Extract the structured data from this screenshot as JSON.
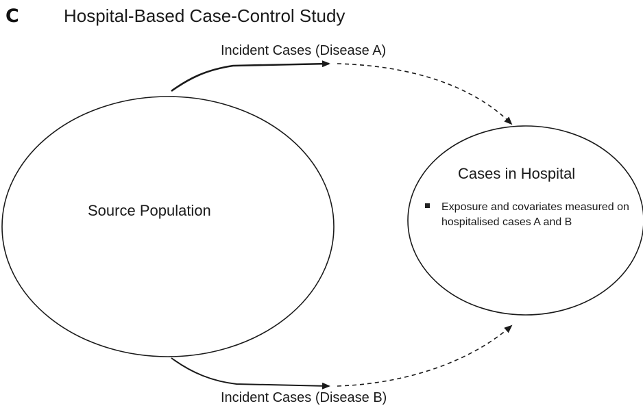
{
  "panel": {
    "letter": "C",
    "title": "Hospital-Based Case-Control Study"
  },
  "nodes": {
    "source_population": "Source Population",
    "cases_in_hospital": "Cases in Hospital"
  },
  "flows": {
    "disease_a": "Incident Cases (Disease A)",
    "disease_b": "Incident Cases (Disease B)"
  },
  "hospital_notes": [
    "Exposure and covariates measured on hospitalised cases A and B"
  ],
  "colors": {
    "stroke": "#1a1a1a",
    "background": "#ffffff"
  }
}
